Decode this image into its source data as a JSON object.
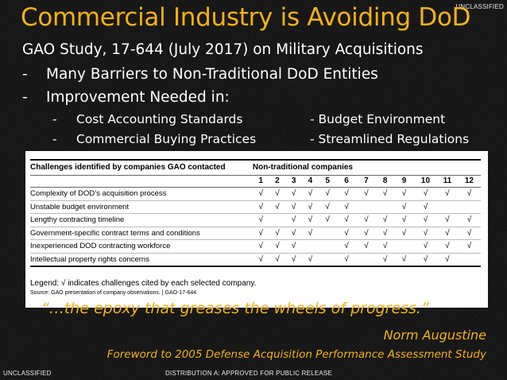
{
  "classification": {
    "top_right": "UNCLASSIFIED",
    "bottom_left": "UNCLASSIFIED",
    "bottom_center": "DISTRIBUTION A: APPROVED FOR PUBLIC RELEASE"
  },
  "slide": {
    "title": "Commercial Industry is Avoiding DoD",
    "line1": "GAO Study, 17-644 (July 2017) on Military Acquisitions",
    "bullet_dash": "-",
    "bullet1": "Many Barriers  to Non-Traditional DoD Entities",
    "bullet2": "Improvement Needed in:",
    "sub_left_1": "Cost Accounting Standards",
    "sub_right_1": "- Budget Environment",
    "sub_left_2": "Commercial Buying Practices",
    "sub_right_2": "- Streamlined Regulations"
  },
  "table": {
    "col_header_challenges": "Challenges identified by companies GAO contacted",
    "col_header_companies": "Non-traditional companies",
    "company_numbers": [
      "1",
      "2",
      "3",
      "4",
      "5",
      "6",
      "7",
      "8",
      "9",
      "10",
      "11",
      "12"
    ],
    "check": "√",
    "rows": [
      {
        "label": "Complexity of DOD’s acquisition process",
        "marks": [
          1,
          1,
          1,
          1,
          1,
          1,
          1,
          1,
          1,
          1,
          1,
          1
        ]
      },
      {
        "label": "Unstable budget environment",
        "marks": [
          1,
          1,
          1,
          1,
          1,
          1,
          0,
          0,
          1,
          1,
          0,
          0
        ]
      },
      {
        "label": "Lengthy contracting timeline",
        "marks": [
          1,
          0,
          1,
          1,
          1,
          1,
          1,
          1,
          1,
          1,
          1,
          1
        ]
      },
      {
        "label": "Government-specific contract terms and conditions",
        "marks": [
          1,
          1,
          1,
          1,
          0,
          1,
          1,
          1,
          1,
          1,
          1,
          1
        ]
      },
      {
        "label": "Inexperienced DOD contracting workforce",
        "marks": [
          1,
          1,
          1,
          0,
          0,
          1,
          1,
          1,
          0,
          1,
          1,
          1
        ]
      },
      {
        "label": "Intellectual property rights concerns",
        "marks": [
          1,
          1,
          1,
          1,
          0,
          1,
          0,
          1,
          1,
          1,
          1,
          0
        ]
      }
    ],
    "legend": "Legend: √ indicates challenges cited by each selected company.",
    "source": "Source: GAO presentation of company observations.  |  GAO-17-644"
  },
  "quote": {
    "text": "“…the epoxy that greases the wheels of progress.”",
    "author": "Norm Augustine",
    "foreword": "Foreword to 2005 Defense Acquisition Performance Assessment Study"
  }
}
